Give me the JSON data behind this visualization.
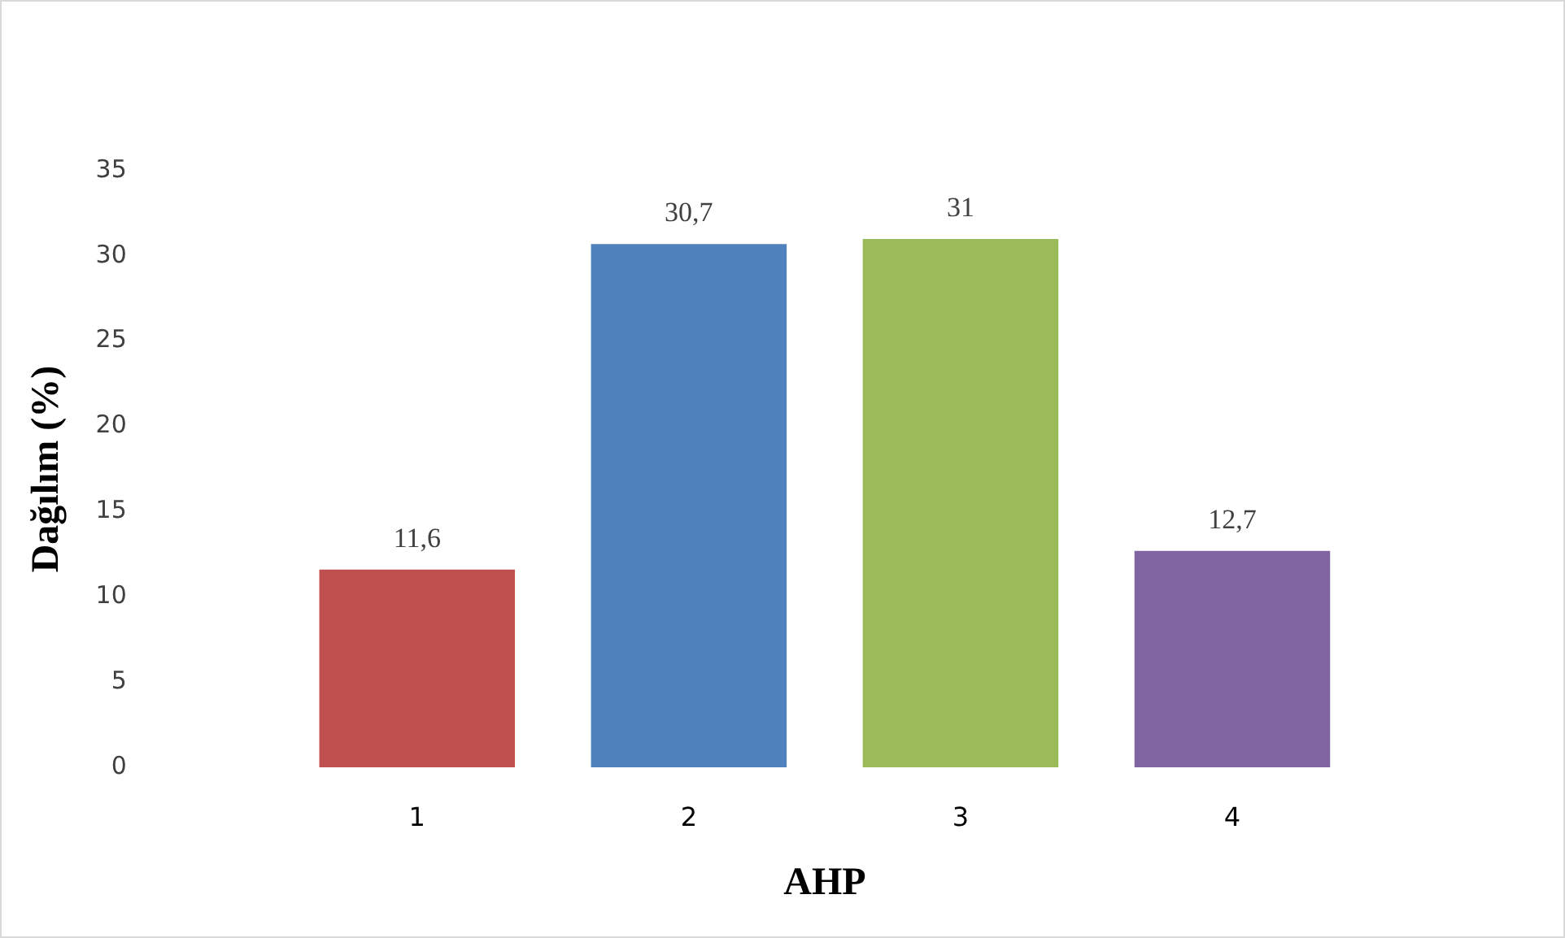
{
  "chart_data": {
    "type": "bar",
    "xlabel": "AHP",
    "ylabel": "Dağılım (%)",
    "categories": [
      "1",
      "2",
      "3",
      "4"
    ],
    "values": [
      11.6,
      30.7,
      31,
      12.7
    ],
    "colors": [
      "#c0504d",
      "#4f81bd",
      "#9bbb59",
      "#8064a2"
    ],
    "ylim": [
      0,
      35
    ],
    "yticks": [
      0,
      5,
      10,
      15,
      20,
      25,
      30,
      35
    ],
    "value_labels": [
      "11,6",
      "30,7",
      "31",
      "12,7"
    ],
    "grid": false,
    "legend": false
  }
}
